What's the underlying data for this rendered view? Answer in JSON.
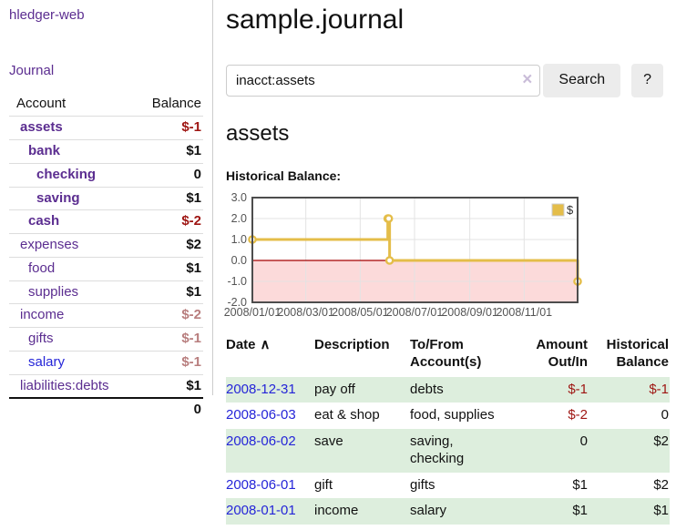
{
  "colors": {
    "purple": "#5b2d90",
    "blue": "#2525d8",
    "negstrong": "#9e1512",
    "negfaded": "#b87e7e",
    "stripe": "#ddeedd",
    "btnbg": "#ececec",
    "bordergray": "#cccccc",
    "rowline": "#dddddd",
    "divider": "#cccccc",
    "clearx": "#c9bcd8"
  },
  "app": {
    "title": "hledger-web",
    "nav_journal": "Journal"
  },
  "sidebar": {
    "header": {
      "account": "Account",
      "balance": "Balance"
    },
    "accounts": [
      {
        "name": "assets",
        "depth": 0,
        "bold": true,
        "link_color": "purple",
        "balance": "$-1",
        "balance_style": "neg-strong"
      },
      {
        "name": "bank",
        "depth": 1,
        "bold": true,
        "link_color": "purple",
        "balance": "$1",
        "balance_style": "pos"
      },
      {
        "name": "checking",
        "depth": 2,
        "bold": true,
        "link_color": "purple",
        "balance": "0",
        "balance_style": "pos"
      },
      {
        "name": "saving",
        "depth": 2,
        "bold": true,
        "link_color": "purple",
        "balance": "$1",
        "balance_style": "pos"
      },
      {
        "name": "cash",
        "depth": 1,
        "bold": true,
        "link_color": "purple",
        "balance": "$-2",
        "balance_style": "neg-strong"
      },
      {
        "name": "expenses",
        "depth": 0,
        "bold": false,
        "link_color": "purple",
        "balance": "$2",
        "balance_style": "pos"
      },
      {
        "name": "food",
        "depth": 1,
        "bold": false,
        "link_color": "purple",
        "balance": "$1",
        "balance_style": "pos"
      },
      {
        "name": "supplies",
        "depth": 1,
        "bold": false,
        "link_color": "purple",
        "balance": "$1",
        "balance_style": "pos"
      },
      {
        "name": "income",
        "depth": 0,
        "bold": false,
        "link_color": "purple",
        "balance": "$-2",
        "balance_style": "neg-faded"
      },
      {
        "name": "gifts",
        "depth": 1,
        "bold": false,
        "link_color": "purple",
        "balance": "$-1",
        "balance_style": "neg-faded"
      },
      {
        "name": "salary",
        "depth": 1,
        "bold": false,
        "link_color": "blue",
        "balance": "$-1",
        "balance_style": "neg-faded"
      },
      {
        "name": "liabilities:debts",
        "depth": 0,
        "bold": false,
        "link_color": "purple",
        "balance": "$1",
        "balance_style": "pos"
      }
    ],
    "total": "0"
  },
  "main": {
    "title": "sample.journal",
    "search": {
      "value": "inacct:assets",
      "clear_icon": "×",
      "button": "Search",
      "help_button": "?"
    },
    "account_heading": "assets",
    "chart_label": "Historical Balance:"
  },
  "chart_data": {
    "type": "line",
    "step": true,
    "title": "Historical Balance",
    "legend": "$",
    "legend_position": "top-right",
    "grid": true,
    "ylim": [
      -2,
      3
    ],
    "x_range": [
      "2008-01-01",
      "2008-12-31"
    ],
    "series": [
      {
        "name": "$",
        "color": "#e4bd49",
        "points": [
          [
            "2008-01-01",
            1
          ],
          [
            "2008-06-01",
            2
          ],
          [
            "2008-06-02",
            2
          ],
          [
            "2008-06-03",
            0
          ],
          [
            "2008-12-31",
            -1
          ]
        ]
      }
    ],
    "y_ticks": [
      {
        "v": 3,
        "label": "3.0"
      },
      {
        "v": 2,
        "label": "2.0"
      },
      {
        "v": 1,
        "label": "1.0"
      },
      {
        "v": 0,
        "label": "0.0"
      },
      {
        "v": -1,
        "label": "-1.0"
      },
      {
        "v": -2,
        "label": "-2.0"
      }
    ],
    "x_ticks": [
      {
        "date": "2008-01-01",
        "label": "2008/01/01"
      },
      {
        "date": "2008-03-01",
        "label": "2008/03/01"
      },
      {
        "date": "2008-05-01",
        "label": "2008/05/01"
      },
      {
        "date": "2008-07-01",
        "label": "2008/07/01"
      },
      {
        "date": "2008-09-01",
        "label": "2008/09/01"
      },
      {
        "date": "2008-11-01",
        "label": "2008/11/01"
      }
    ],
    "negative_region_color": "#fcdada",
    "zero_line_color": "#a40000",
    "grid_color": "#e3e3e3",
    "border_color": "#4d4d4d",
    "tick_text_color": "#545454"
  },
  "table": {
    "headers": {
      "date": "Date",
      "sort_icon": "∧",
      "description": "Description",
      "tofrom": "To/From Account(s)",
      "amount": "Amount Out/In",
      "balance": "Historical Balance"
    },
    "rows": [
      {
        "date": "2008-12-31",
        "description": "pay off",
        "tofrom": "debts",
        "amount": "$-1",
        "amount_neg": true,
        "balance": "$-1",
        "balance_neg": true
      },
      {
        "date": "2008-06-03",
        "description": "eat & shop",
        "tofrom": "food, supplies",
        "amount": "$-2",
        "amount_neg": true,
        "balance": "0",
        "balance_neg": false
      },
      {
        "date": "2008-06-02",
        "description": "save",
        "tofrom": "saving,\nchecking",
        "amount": "0",
        "amount_neg": false,
        "balance": "$2",
        "balance_neg": false
      },
      {
        "date": "2008-06-01",
        "description": "gift",
        "tofrom": "gifts",
        "amount": "$1",
        "amount_neg": false,
        "balance": "$2",
        "balance_neg": false
      },
      {
        "date": "2008-01-01",
        "description": "income",
        "tofrom": "salary",
        "amount": "$1",
        "amount_neg": false,
        "balance": "$1",
        "balance_neg": false
      }
    ]
  }
}
